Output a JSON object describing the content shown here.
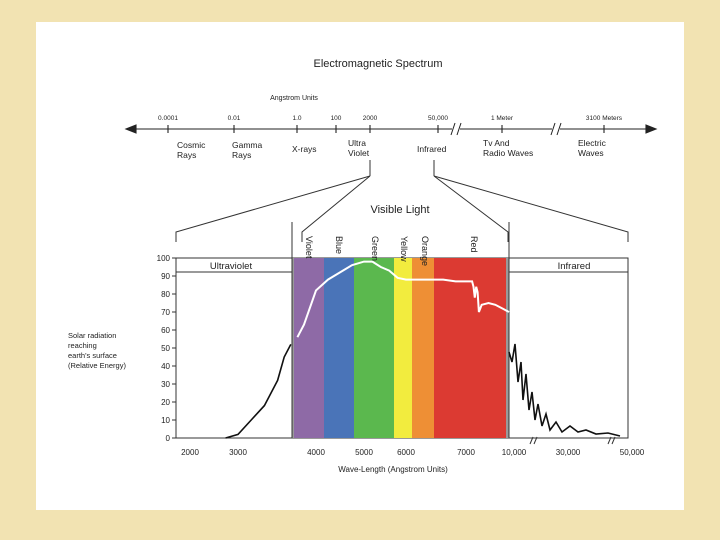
{
  "title": "Electromagnetic Spectrum",
  "scale_label": "Angstrom Units",
  "scale_ticks": [
    "0.0001",
    "0.01",
    "1.0",
    "100",
    "2000",
    "50,000",
    "1 Meter",
    "3100 Meters"
  ],
  "regions": [
    {
      "line1": "Cosmic",
      "line2": "Rays"
    },
    {
      "line1": "Gamma",
      "line2": "Rays"
    },
    {
      "line1": "X-rays",
      "line2": ""
    },
    {
      "line1": "Ultra",
      "line2": "Violet"
    },
    {
      "line1": "Infrared",
      "line2": ""
    },
    {
      "line1": "Tv And",
      "line2": "Radio Waves"
    },
    {
      "line1": "Electric",
      "line2": "Waves"
    }
  ],
  "visible_title": "Visible Light",
  "color_labels": [
    "Violet",
    "Blue",
    "Green",
    "Yellow",
    "Orange",
    "Red"
  ],
  "band_colors": {
    "Violet": "#8e6aa6",
    "Blue": "#4a74b8",
    "Green": "#5bb84e",
    "Yellow": "#f2ec3e",
    "Orange": "#ee8f35",
    "Red": "#dc3a32",
    "Background": "#9a9a9a"
  },
  "zone_labels": {
    "left": "Ultraviolet",
    "right": "Infrared"
  },
  "y_axis_label": [
    "Solar radiation",
    "reaching",
    "earth's surface",
    "(Relative Energy)"
  ],
  "chart_data": {
    "type": "line",
    "xlabel": "Wave-Length (Angstrom Units)",
    "ylabel": "Solar radiation reaching earth's surface (Relative Energy)",
    "x_tick_labels": [
      "2000",
      "3000",
      "4000",
      "5000",
      "6000",
      "7000",
      "10,000",
      "30,000",
      "50,000"
    ],
    "y_ticks": [
      0,
      10,
      20,
      30,
      40,
      50,
      60,
      70,
      80,
      90,
      100
    ],
    "ylim": [
      0,
      100
    ],
    "series": [
      {
        "x": [
          2800,
          3000,
          3200,
          3400,
          3600,
          3700,
          3800,
          3900,
          4000,
          4200,
          4400,
          4600,
          4800,
          5000,
          5200,
          5400,
          5600,
          5800,
          6000,
          6200,
          6400,
          6600,
          6800,
          7000,
          7200,
          7300,
          7400,
          7500,
          7600,
          7700,
          7800,
          8000,
          8500,
          9000,
          9500,
          10000
        ],
        "y": [
          0,
          2,
          10,
          18,
          32,
          45,
          52,
          56,
          63,
          82,
          88,
          92,
          96,
          98,
          98,
          95,
          93,
          89,
          88,
          88,
          88,
          88,
          87,
          87,
          87,
          87,
          84,
          78,
          84,
          81,
          70,
          74,
          75,
          74,
          72,
          70
        ]
      }
    ]
  }
}
